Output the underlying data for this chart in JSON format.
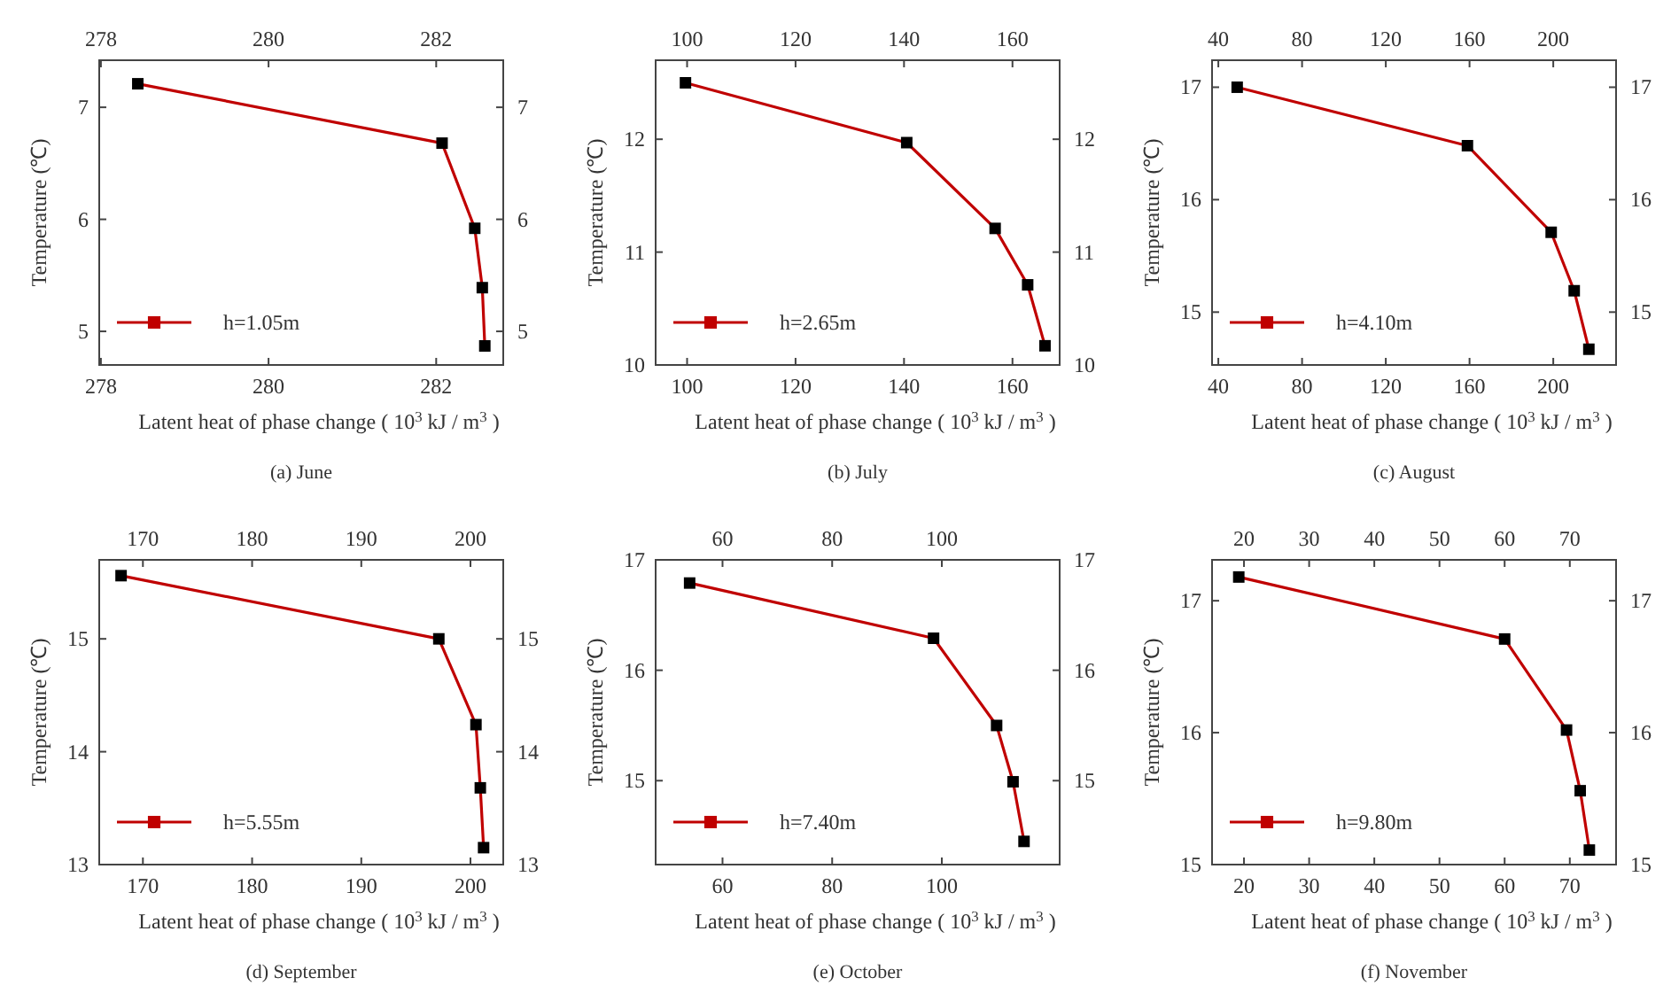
{
  "chart_data": [
    {
      "type": "line",
      "title": "(a) June",
      "xlabel": "Latent heat of phase change ( 10$^{3}$ kJ / m$^{3}$ )",
      "ylabel": "Temperature (℃)",
      "x": [
        278.44,
        282.07,
        282.46,
        282.55,
        282.58
      ],
      "series": [
        {
          "name": "h=1.05m",
          "color": "#c00000",
          "values": [
            7.21,
            6.68,
            5.92,
            5.39,
            4.87
          ]
        }
      ],
      "xlim": [
        277.98,
        282.8
      ],
      "xticks": [
        278,
        280,
        282
      ],
      "x2lim": [
        277.98,
        282.8
      ],
      "x2ticks": [
        278,
        280,
        282
      ],
      "ylim": [
        4.7,
        7.42
      ],
      "yticks": [
        5,
        6,
        7
      ],
      "y2lim": [
        4.7,
        7.42
      ],
      "y2ticks": [
        5,
        6,
        7
      ],
      "legend": "bottom left",
      "marker": "square",
      "grid": false
    },
    {
      "type": "line",
      "title": "(b) July",
      "xlabel": "Latent heat of phase change ( 10$^{3}$ kJ / m$^{3}$ )",
      "ylabel": "Temperature (℃)",
      "x": [
        99.7,
        140.5,
        156.8,
        162.8,
        166
      ],
      "series": [
        {
          "name": "h=2.65m",
          "color": "#c00000",
          "values": [
            12.5,
            11.97,
            11.21,
            10.71,
            10.17
          ]
        }
      ],
      "xlim": [
        94.2,
        168.7
      ],
      "xticks": [
        100,
        120,
        140,
        160
      ],
      "x2lim": [
        94.2,
        168.7
      ],
      "x2ticks": [
        100,
        120,
        140,
        160
      ],
      "ylim": [
        10,
        12.7
      ],
      "yticks": [
        10,
        11,
        12
      ],
      "y2lim": [
        10,
        12.7
      ],
      "y2ticks": [
        10,
        11,
        12
      ],
      "legend": "bottom left",
      "marker": "square",
      "grid": false
    },
    {
      "type": "line",
      "title": "(c) August",
      "xlabel": "Latent heat of phase change ( 10$^{3}$ kJ / m$^{3}$ )",
      "ylabel": "Temperature (℃)",
      "x": [
        49,
        159,
        199,
        210,
        217
      ],
      "series": [
        {
          "name": "h=4.10m",
          "color": "#c00000",
          "values": [
            17.0,
            16.48,
            15.71,
            15.19,
            14.67
          ]
        }
      ],
      "xlim": [
        37,
        230
      ],
      "xticks": [
        40,
        80,
        120,
        160,
        200
      ],
      "x2lim": [
        37,
        230
      ],
      "x2ticks": [
        40,
        80,
        120,
        160,
        200
      ],
      "ylim": [
        14.53,
        17.24
      ],
      "yticks": [
        15,
        16,
        17
      ],
      "y2lim": [
        14.53,
        17.24
      ],
      "y2ticks": [
        15,
        16,
        17
      ],
      "legend": "bottom left",
      "marker": "square",
      "grid": false
    },
    {
      "type": "line",
      "title": "(d) September",
      "xlabel": "Latent heat of phase change ( 10$^{3}$ kJ / m$^{3}$ )",
      "ylabel": "Temperature (℃)",
      "x": [
        168,
        197.1,
        200.5,
        200.9,
        201.2
      ],
      "series": [
        {
          "name": "h=5.55m",
          "color": "#c00000",
          "values": [
            15.56,
            15.0,
            14.24,
            13.68,
            13.15
          ]
        }
      ],
      "xlim": [
        166,
        203
      ],
      "xticks": [
        170,
        180,
        190,
        200
      ],
      "x2lim": [
        166,
        203
      ],
      "x2ticks": [
        170,
        180,
        190,
        200
      ],
      "ylim": [
        13,
        15.7
      ],
      "yticks": [
        13,
        14,
        15
      ],
      "y2lim": [
        13,
        15.7
      ],
      "y2ticks": [
        13,
        14,
        15
      ],
      "legend": "bottom left",
      "marker": "square",
      "grid": false
    },
    {
      "type": "line",
      "title": "(e) October",
      "xlabel": "Latent heat of phase change ( 10$^{3}$ kJ / m$^{3}$ )",
      "ylabel": "Temperature (℃)",
      "x": [
        54,
        98.5,
        110,
        113,
        115
      ],
      "series": [
        {
          "name": "h=7.40m",
          "color": "#c00000",
          "values": [
            16.79,
            16.29,
            15.5,
            14.99,
            14.45
          ]
        }
      ],
      "xlim": [
        47.8,
        121.5
      ],
      "xticks": [
        60,
        80,
        100
      ],
      "x2lim": [
        47.8,
        121.5
      ],
      "x2ticks": [
        60,
        80,
        100
      ],
      "ylim": [
        14.24,
        17.0
      ],
      "yticks": [
        15,
        16,
        17
      ],
      "y2lim": [
        14.24,
        17.0
      ],
      "y2ticks": [
        15,
        16,
        17
      ],
      "legend": "bottom left",
      "marker": "square",
      "grid": false
    },
    {
      "type": "line",
      "title": "(f) November",
      "xlabel": "Latent heat of phase change ( 10$^{3}$ kJ / m$^{3}$ )",
      "ylabel": "Temperature (℃)",
      "x": [
        19.2,
        60,
        69.5,
        71.6,
        73
      ],
      "series": [
        {
          "name": "h=9.80m",
          "color": "#c00000",
          "values": [
            17.18,
            16.71,
            16.02,
            15.56,
            15.11
          ]
        }
      ],
      "xlim": [
        15.1,
        77.1
      ],
      "xticks": [
        20,
        30,
        40,
        50,
        60,
        70
      ],
      "x2lim": [
        15.1,
        77.1
      ],
      "x2ticks": [
        20,
        30,
        40,
        50,
        60,
        70
      ],
      "ylim": [
        15,
        17.31
      ],
      "yticks": [
        15,
        16,
        17
      ],
      "y2lim": [
        15,
        17.31
      ],
      "y2ticks": [
        15,
        16,
        17
      ],
      "legend": "bottom left",
      "marker": "square",
      "grid": false
    }
  ]
}
